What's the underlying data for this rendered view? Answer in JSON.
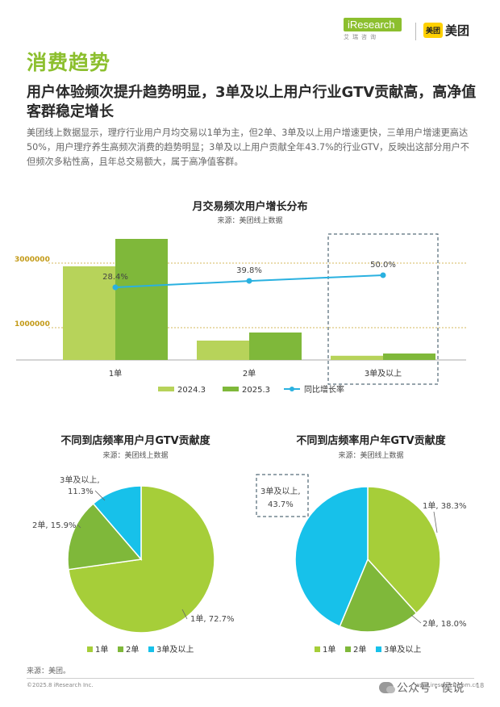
{
  "header": {
    "section_title": "消费趋势",
    "brand_iresearch": "iResearch",
    "brand_iresearch_sub": "艾瑞咨询",
    "brand_meituan_badge": "美团",
    "brand_meituan": "美团"
  },
  "headline": "用户体验频次提升趋势明显，3单及以上用户行业GTV贡献高，高净值客群稳定增长",
  "intro": "美团线上数据显示，理疗行业用户月均交易以1单为主，但2单、3单及以上用户增速更快，三单用户增速更高达50%，用户理疗养生高频次消费的趋势明显；3单及以上用户贡献全年43.7%的行业GTV，反映出这部分用户不但频次多粘性高，且年总交易额大，属于高净值客群。",
  "colors": {
    "bar_2024": "#b7d35a",
    "bar_2025": "#7fb83a",
    "line": "#2ab1e0",
    "pie_1": "#a6ce39",
    "pie_2": "#7fb83a",
    "pie_3": "#17c1ea",
    "accent": "#8cbf2e"
  },
  "chart_data": [
    {
      "type": "bar",
      "title": "月交易频次用户增长分布",
      "subtitle": "来源：美团线上数据",
      "categories": [
        "1单",
        "2单",
        "3单及以上"
      ],
      "series": [
        {
          "name": "2024.3",
          "values": [
            2900000,
            600000,
            130000
          ]
        },
        {
          "name": "2025.3",
          "values": [
            3750000,
            850000,
            200000
          ]
        }
      ],
      "line_series": {
        "name": "同比增长率",
        "values": [
          28.4,
          39.8,
          50.0
        ],
        "labels": [
          "28.4%",
          "39.8%",
          "50.0%"
        ]
      },
      "y_ticks": [
        "1000000",
        "3000000"
      ],
      "y_tick_values": [
        1000000,
        3000000
      ],
      "ylim": [
        0,
        4000000
      ],
      "line_ylim": [
        0,
        80
      ],
      "highlight_category": "3单及以上",
      "legend_position": "bottom"
    },
    {
      "type": "pie",
      "title": "不同到店频率用户月GTV贡献度",
      "subtitle": "来源：美团线上数据",
      "categories": [
        "1单",
        "2单",
        "3单及以上"
      ],
      "values": [
        72.7,
        15.9,
        11.3
      ],
      "labels": [
        "1单, 72.7%",
        "2单, 15.9%",
        "3单及以上,",
        "11.3%"
      ],
      "legend_position": "bottom"
    },
    {
      "type": "pie",
      "title": "不同到店频率用户年GTV贡献度",
      "subtitle": "来源：美团线上数据",
      "categories": [
        "1单",
        "2单",
        "3单及以上"
      ],
      "values": [
        38.3,
        18.0,
        43.7
      ],
      "labels": [
        "1单, 38.3%",
        "2单, 18.0%",
        "3单及以上,",
        "43.7%"
      ],
      "highlight_category": "3单及以上",
      "legend_position": "bottom"
    }
  ],
  "footer": {
    "source": "来源：美团。",
    "copyright": "©2025.8 iResearch Inc.",
    "url": "www.iresearch.com.cn",
    "page": "18",
    "watermark": "公众号 · 侯说"
  }
}
